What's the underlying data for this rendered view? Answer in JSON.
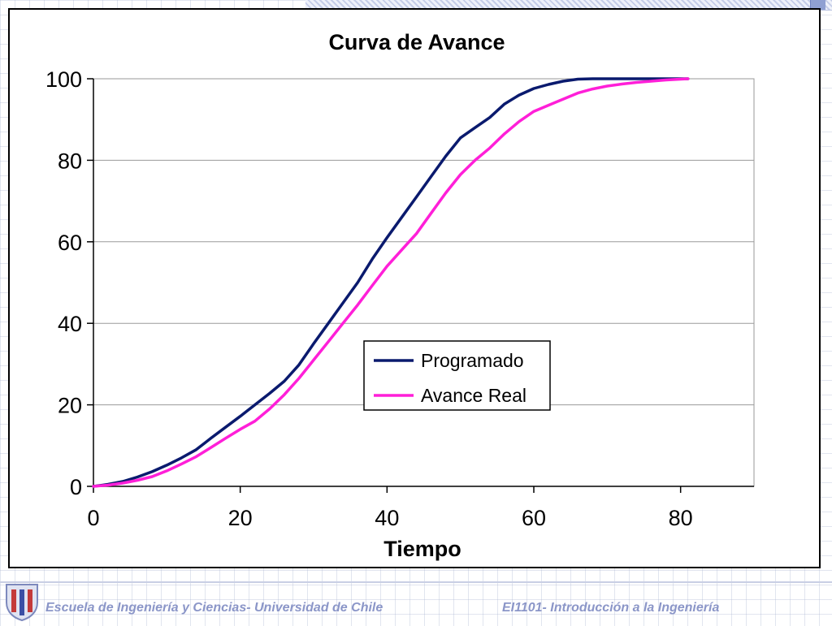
{
  "chart_data": {
    "type": "line",
    "title": "Curva de Avance",
    "xlabel": "Tiempo",
    "ylabel": "",
    "xlim": [
      0,
      90
    ],
    "ylim": [
      0,
      100
    ],
    "xticks": [
      0,
      20,
      40,
      60,
      80
    ],
    "yticks": [
      0,
      20,
      40,
      60,
      80,
      100
    ],
    "grid": "horizontal",
    "legend_position": "center-right",
    "series": [
      {
        "name": "Programado",
        "color": "#0a1a6e",
        "points": [
          [
            0,
            0
          ],
          [
            2,
            0.5
          ],
          [
            4,
            1.2
          ],
          [
            6,
            2.3
          ],
          [
            8,
            3.6
          ],
          [
            10,
            5.2
          ],
          [
            12,
            7
          ],
          [
            14,
            9
          ],
          [
            16,
            11.8
          ],
          [
            18,
            14.5
          ],
          [
            20,
            17.2
          ],
          [
            22,
            20
          ],
          [
            24,
            22.8
          ],
          [
            26,
            25.8
          ],
          [
            28,
            29.8
          ],
          [
            30,
            35
          ],
          [
            32,
            40
          ],
          [
            34,
            45
          ],
          [
            36,
            50
          ],
          [
            38,
            55.8
          ],
          [
            40,
            61
          ],
          [
            42,
            66
          ],
          [
            44,
            71
          ],
          [
            46,
            76
          ],
          [
            48,
            81
          ],
          [
            50,
            85.5
          ],
          [
            52,
            88
          ],
          [
            54,
            90.5
          ],
          [
            56,
            93.8
          ],
          [
            58,
            96
          ],
          [
            60,
            97.6
          ],
          [
            62,
            98.6
          ],
          [
            64,
            99.4
          ],
          [
            66,
            99.9
          ],
          [
            68,
            100
          ],
          [
            81,
            100
          ]
        ]
      },
      {
        "name": "Avance Real",
        "color": "#ff1fd8",
        "points": [
          [
            0,
            0
          ],
          [
            2,
            0.3
          ],
          [
            4,
            0.8
          ],
          [
            6,
            1.5
          ],
          [
            8,
            2.4
          ],
          [
            10,
            3.8
          ],
          [
            12,
            5.5
          ],
          [
            14,
            7.3
          ],
          [
            16,
            9.5
          ],
          [
            18,
            11.8
          ],
          [
            20,
            14
          ],
          [
            22,
            16
          ],
          [
            24,
            19
          ],
          [
            26,
            22.5
          ],
          [
            28,
            26.5
          ],
          [
            30,
            31
          ],
          [
            32,
            35.5
          ],
          [
            34,
            40
          ],
          [
            36,
            44.5
          ],
          [
            38,
            49.3
          ],
          [
            40,
            54
          ],
          [
            42,
            58
          ],
          [
            44,
            62
          ],
          [
            46,
            67
          ],
          [
            48,
            72
          ],
          [
            50,
            76.5
          ],
          [
            52,
            80
          ],
          [
            54,
            83
          ],
          [
            56,
            86.5
          ],
          [
            58,
            89.5
          ],
          [
            60,
            92
          ],
          [
            62,
            93.5
          ],
          [
            64,
            95
          ],
          [
            66,
            96.5
          ],
          [
            68,
            97.5
          ],
          [
            70,
            98.2
          ],
          [
            72,
            98.7
          ],
          [
            74,
            99.1
          ],
          [
            76,
            99.4
          ],
          [
            78,
            99.7
          ],
          [
            81,
            100
          ]
        ]
      }
    ]
  },
  "footer": {
    "left_text": "Escuela de Ingeniería y Ciencias- Universidad de Chile",
    "right_text": "EI1101- Introducción a la Ingeniería"
  }
}
